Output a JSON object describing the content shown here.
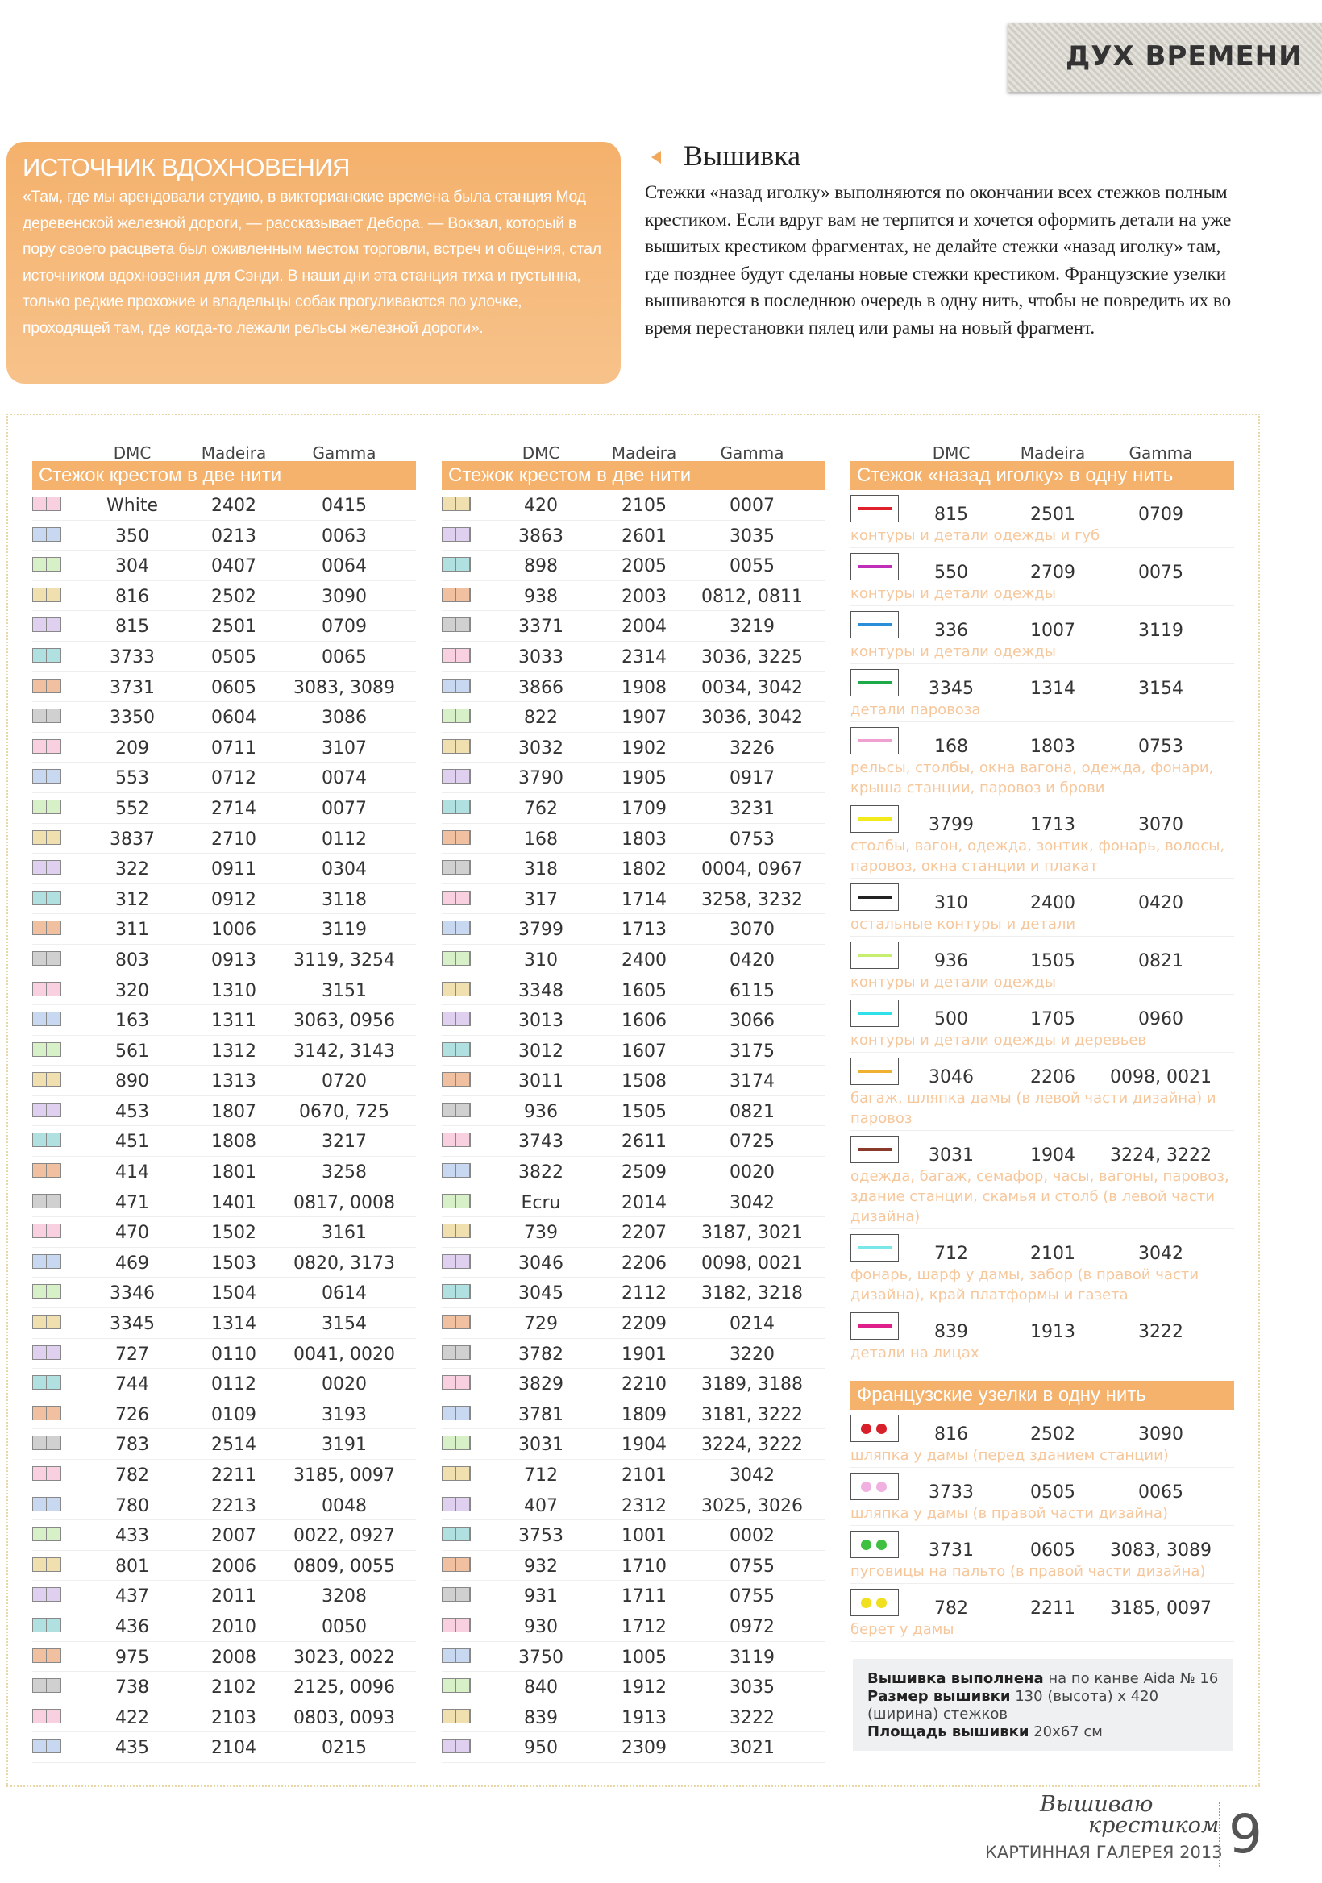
{
  "header": {
    "tag": "ДУХ ВРЕМЕНИ"
  },
  "inspiration": {
    "title": "ИСТОЧНИК ВДОХНОВЕНИЯ",
    "text": "«Там, где мы арендовали студию, в викторианские времена была станция Мод деревенской железной дороги, — рассказывает Дебора. — Вокзал, который в пору своего расцвета был оживленным местом торговли, встреч и общения, стал источником вдохновения для Сэнди. В наши дни эта станция тиха и пустынна, только редкие прохожие и владельцы собак прогуливаются по улочке, проходящей там, где когда-то лежали рельсы железной дороги»."
  },
  "embroidery": {
    "title": "Вышивка",
    "text": "Стежки «назад иголку» выполняются по окончании всех стежков полным крестиком. Если вдруг вам не терпится и хочется оформить детали на уже вышитых крестиком фрагментах, не делайте стежки «назад иголку» там, где позднее будут сделаны новые стежки крестиком. Французские узелки вышиваются в последнюю очередь в одну нить, чтобы не повредить их во время перестановки пялец или рамы на новый фрагмент."
  },
  "columns": [
    {
      "headers": [
        "DMC",
        "Madeira",
        "Gamma"
      ],
      "section": "Стежок крестом в две нити",
      "rows": [
        [
          "White",
          "2402",
          "0415"
        ],
        [
          "350",
          "0213",
          "0063"
        ],
        [
          "304",
          "0407",
          "0064"
        ],
        [
          "816",
          "2502",
          "3090"
        ],
        [
          "815",
          "2501",
          "0709"
        ],
        [
          "3733",
          "0505",
          "0065"
        ],
        [
          "3731",
          "0605",
          "3083, 3089"
        ],
        [
          "3350",
          "0604",
          "3086"
        ],
        [
          "209",
          "0711",
          "3107"
        ],
        [
          "553",
          "0712",
          "0074"
        ],
        [
          "552",
          "2714",
          "0077"
        ],
        [
          "3837",
          "2710",
          "0112"
        ],
        [
          "322",
          "0911",
          "0304"
        ],
        [
          "312",
          "0912",
          "3118"
        ],
        [
          "311",
          "1006",
          "3119"
        ],
        [
          "803",
          "0913",
          "3119, 3254"
        ],
        [
          "320",
          "1310",
          "3151"
        ],
        [
          "163",
          "1311",
          "3063, 0956"
        ],
        [
          "561",
          "1312",
          "3142, 3143"
        ],
        [
          "890",
          "1313",
          "0720"
        ],
        [
          "453",
          "1807",
          "0670, 725"
        ],
        [
          "451",
          "1808",
          "3217"
        ],
        [
          "414",
          "1801",
          "3258"
        ],
        [
          "471",
          "1401",
          "0817, 0008"
        ],
        [
          "470",
          "1502",
          "3161"
        ],
        [
          "469",
          "1503",
          "0820, 3173"
        ],
        [
          "3346",
          "1504",
          "0614"
        ],
        [
          "3345",
          "1314",
          "3154"
        ],
        [
          "727",
          "0110",
          "0041, 0020"
        ],
        [
          "744",
          "0112",
          "0020"
        ],
        [
          "726",
          "0109",
          "3193"
        ],
        [
          "783",
          "2514",
          "3191"
        ],
        [
          "782",
          "2211",
          "3185, 0097"
        ],
        [
          "780",
          "2213",
          "0048"
        ],
        [
          "433",
          "2007",
          "0022, 0927"
        ],
        [
          "801",
          "2006",
          "0809, 0055"
        ],
        [
          "437",
          "2011",
          "3208"
        ],
        [
          "436",
          "2010",
          "0050"
        ],
        [
          "975",
          "2008",
          "3023, 0022"
        ],
        [
          "738",
          "2102",
          "2125, 0096"
        ],
        [
          "422",
          "2103",
          "0803, 0093"
        ],
        [
          "435",
          "2104",
          "0215"
        ]
      ]
    },
    {
      "headers": [
        "DMC",
        "Madeira",
        "Gamma"
      ],
      "section": "Стежок крестом в две нити",
      "rows": [
        [
          "420",
          "2105",
          "0007"
        ],
        [
          "3863",
          "2601",
          "3035"
        ],
        [
          "898",
          "2005",
          "0055"
        ],
        [
          "938",
          "2003",
          "0812, 0811"
        ],
        [
          "3371",
          "2004",
          "3219"
        ],
        [
          "3033",
          "2314",
          "3036, 3225"
        ],
        [
          "3866",
          "1908",
          "0034, 3042"
        ],
        [
          "822",
          "1907",
          "3036, 3042"
        ],
        [
          "3032",
          "1902",
          "3226"
        ],
        [
          "3790",
          "1905",
          "0917"
        ],
        [
          "762",
          "1709",
          "3231"
        ],
        [
          "168",
          "1803",
          "0753"
        ],
        [
          "318",
          "1802",
          "0004, 0967"
        ],
        [
          "317",
          "1714",
          "3258, 3232"
        ],
        [
          "3799",
          "1713",
          "3070"
        ],
        [
          "310",
          "2400",
          "0420"
        ],
        [
          "3348",
          "1605",
          "6115"
        ],
        [
          "3013",
          "1606",
          "3066"
        ],
        [
          "3012",
          "1607",
          "3175"
        ],
        [
          "3011",
          "1508",
          "3174"
        ],
        [
          "936",
          "1505",
          "0821"
        ],
        [
          "3743",
          "2611",
          "0725"
        ],
        [
          "3822",
          "2509",
          "0020"
        ],
        [
          "Ecru",
          "2014",
          "3042"
        ],
        [
          "739",
          "2207",
          "3187, 3021"
        ],
        [
          "3046",
          "2206",
          "0098, 0021"
        ],
        [
          "3045",
          "2112",
          "3182, 3218"
        ],
        [
          "729",
          "2209",
          "0214"
        ],
        [
          "3782",
          "1901",
          "3220"
        ],
        [
          "3829",
          "2210",
          "3189, 3188"
        ],
        [
          "3781",
          "1809",
          "3181, 3222"
        ],
        [
          "3031",
          "1904",
          "3224, 3222"
        ],
        [
          "712",
          "2101",
          "3042"
        ],
        [
          "407",
          "2312",
          "3025, 3026"
        ],
        [
          "3753",
          "1001",
          "0002"
        ],
        [
          "932",
          "1710",
          "0755"
        ],
        [
          "931",
          "1711",
          "0755"
        ],
        [
          "930",
          "1712",
          "0972"
        ],
        [
          "3750",
          "1005",
          "3119"
        ],
        [
          "840",
          "1912",
          "3035"
        ],
        [
          "839",
          "1913",
          "3222"
        ],
        [
          "950",
          "2309",
          "3021"
        ]
      ]
    }
  ],
  "backstitch": {
    "headers": [
      "DMC",
      "Madeira",
      "Gamma"
    ],
    "section": "Стежок «назад иголку» в одну нить",
    "rows": [
      {
        "color": "#e0202a",
        "dmc": "815",
        "madeira": "2501",
        "gamma": "0709",
        "note": "контуры и детали одежды и губ"
      },
      {
        "color": "#c02fb8",
        "dmc": "550",
        "madeira": "2709",
        "gamma": "0075",
        "note": "контуры и детали одежды"
      },
      {
        "color": "#2a8fd8",
        "dmc": "336",
        "madeira": "1007",
        "gamma": "3119",
        "note": "контуры и детали одежды"
      },
      {
        "color": "#1faa4a",
        "dmc": "3345",
        "madeira": "1314",
        "gamma": "3154",
        "note": "детали паровоза"
      },
      {
        "color": "#f0a0d0",
        "dmc": "168",
        "madeira": "1803",
        "gamma": "0753",
        "note": "рельсы, столбы, окна вагона, одежда, фонари, крыша станции, паровоз и брови"
      },
      {
        "color": "#f2ea1a",
        "dmc": "3799",
        "madeira": "1713",
        "gamma": "3070",
        "note": "столбы, вагон, одежда, зонтик, фонарь, волосы, паровоз, окна станции и плакат"
      },
      {
        "color": "#222222",
        "dmc": "310",
        "madeira": "2400",
        "gamma": "0420",
        "note": "остальные контуры и детали"
      },
      {
        "color": "#c8ee70",
        "dmc": "936",
        "madeira": "1505",
        "gamma": "0821",
        "note": "контуры и детали одежды"
      },
      {
        "color": "#30e0e8",
        "dmc": "500",
        "madeira": "1705",
        "gamma": "0960",
        "note": "контуры и детали одежды и деревьев"
      },
      {
        "color": "#f0b030",
        "dmc": "3046",
        "madeira": "2206",
        "gamma": "0098, 0021",
        "note": "багаж, шляпка дамы (в левой части дизайна) и паровоз"
      },
      {
        "color": "#8a3a2a",
        "dmc": "3031",
        "madeira": "1904",
        "gamma": "3224, 3222",
        "note": "одежда, багаж, семафор, часы, вагоны, паровоз, здание станции, скамья и столб (в левой части дизайна)"
      },
      {
        "color": "#7ae8e8",
        "dmc": "712",
        "madeira": "2101",
        "gamma": "3042",
        "note": "фонарь, шарф у дамы, забор (в правой части дизайна), край платформы и газета"
      },
      {
        "color": "#e0208a",
        "dmc": "839",
        "madeira": "1913",
        "gamma": "3222",
        "note": "детали на лицах"
      }
    ]
  },
  "french": {
    "section": "Французские узелки в одну нить",
    "rows": [
      {
        "color": "#d8202a",
        "dmc": "816",
        "madeira": "2502",
        "gamma": "3090",
        "note": "шляпка у дамы (перед зданием станции)"
      },
      {
        "color": "#f0b0e0",
        "dmc": "3733",
        "madeira": "0505",
        "gamma": "0065",
        "note": "шляпка у дамы (в правой части дизайна)"
      },
      {
        "color": "#40c040",
        "dmc": "3731",
        "madeira": "0605",
        "gamma": "3083, 3089",
        "note": "пуговицы на пальто (в правой части дизайна)"
      },
      {
        "color": "#f0e020",
        "dmc": "782",
        "madeira": "2211",
        "gamma": "3185, 0097",
        "note": "берет у дамы"
      }
    ]
  },
  "info": [
    {
      "label": "Вышивка выполнена",
      "text": "на по канве Aida № 16"
    },
    {
      "label": "Размер вышивки",
      "text": "130 (высота) x 420 (ширина) стежков"
    },
    {
      "label": "Площадь вышивки",
      "text": "20x67 см"
    }
  ],
  "footer": {
    "logo": [
      "Вышиваю",
      "крестиком"
    ],
    "subtitle": "КАРТИННАЯ ГАЛЕРЕЯ 2013",
    "page": "9"
  }
}
